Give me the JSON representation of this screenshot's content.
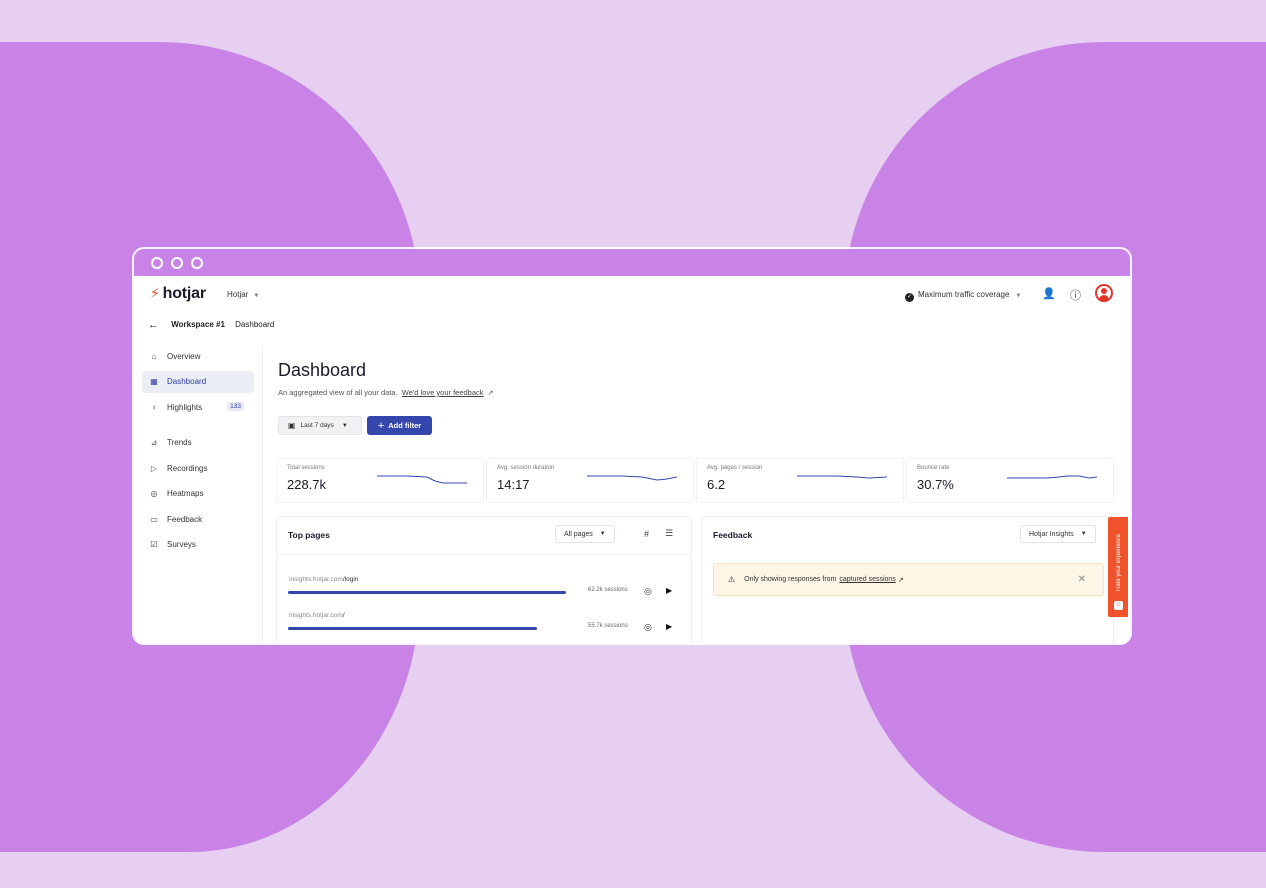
{
  "brand": {
    "logo": "hotjar",
    "org": "Hotjar"
  },
  "topbar": {
    "coverage": "Maximum traffic coverage"
  },
  "breadcrumb": {
    "workspace": "Workspace #1",
    "page": "Dashboard"
  },
  "sidebar": {
    "items": [
      {
        "label": "Overview",
        "icon": "home-icon"
      },
      {
        "label": "Dashboard",
        "icon": "dashboard-icon",
        "active": true
      },
      {
        "label": "Highlights",
        "icon": "bulb-icon",
        "badge": "133"
      },
      {
        "label": "Trends",
        "icon": "trends-icon"
      },
      {
        "label": "Recordings",
        "icon": "recordings-icon"
      },
      {
        "label": "Heatmaps",
        "icon": "heatmaps-icon"
      },
      {
        "label": "Feedback",
        "icon": "feedback-icon"
      },
      {
        "label": "Surveys",
        "icon": "surveys-icon"
      }
    ]
  },
  "main": {
    "title": "Dashboard",
    "subtitle": "An aggregated view of all your data.",
    "feedback_link": "We'd love your feedback",
    "date_range": "Last 7 days",
    "add_filter": "Add filter"
  },
  "metrics": [
    {
      "label": "Total sessions",
      "value": "228.7k"
    },
    {
      "label": "Avg. session duration",
      "value": "14:17"
    },
    {
      "label": "Avg. pages / session",
      "value": "6.2"
    },
    {
      "label": "Bounce rate",
      "value": "30.7%"
    }
  ],
  "top_pages": {
    "title": "Top pages",
    "filter": "All pages",
    "rows": [
      {
        "domain": "insights.hotjar.com",
        "path": "/login",
        "sessions": "62.2k sessions",
        "share": 1.0
      },
      {
        "domain": "insights.hotjar.com",
        "path": "/",
        "sessions": "55.7k sessions",
        "share": 0.895
      }
    ]
  },
  "feedback": {
    "title": "Feedback",
    "filter": "Hotjar Insights",
    "notice_text": "Only showing responses from",
    "notice_link": "captured sessions"
  },
  "rate_tab": {
    "label": "Rate your experience"
  },
  "colors": {
    "accent": "#3546ad",
    "brand": "#f14d2a",
    "background": "#e6cff0",
    "blob": "#c983e6"
  }
}
